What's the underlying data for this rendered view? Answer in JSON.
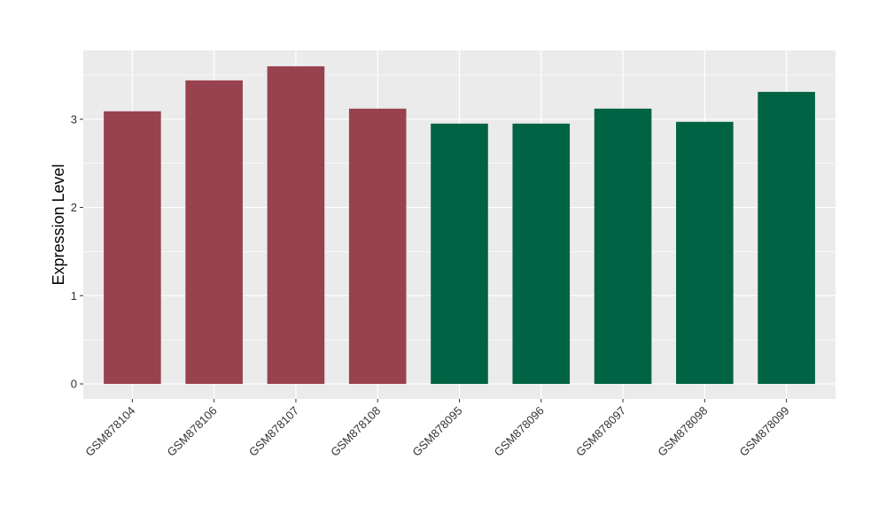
{
  "chart_data": {
    "type": "bar",
    "xlabel": "",
    "ylabel": "Expression Level",
    "ylim": [
      -0.17,
      3.78
    ],
    "yticks": [
      0,
      1,
      2,
      3
    ],
    "grid": true,
    "legend": "none",
    "categories": [
      "GSM878104",
      "GSM878106",
      "GSM878107",
      "GSM878108",
      "GSM878095",
      "GSM878096",
      "GSM878097",
      "GSM878098",
      "GSM878099"
    ],
    "values": [
      3.09,
      3.44,
      3.6,
      3.12,
      2.95,
      2.95,
      3.12,
      2.97,
      3.31
    ],
    "bar_colors": [
      "#99424f",
      "#99424f",
      "#99424f",
      "#99424f",
      "#006343",
      "#006343",
      "#006343",
      "#006343",
      "#006343"
    ],
    "panel_background": "#ebebeb",
    "grid_color": "#ffffff"
  }
}
